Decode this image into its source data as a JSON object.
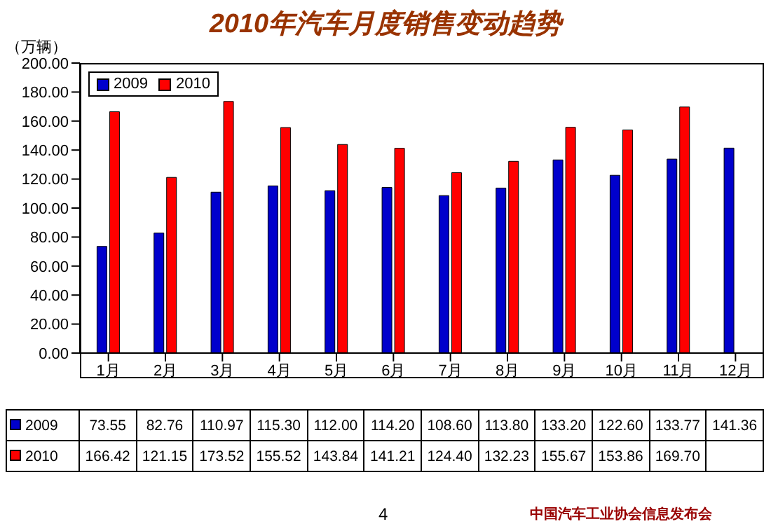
{
  "chart_data": {
    "type": "bar",
    "title": "2010年汽车月度销售变动趋势",
    "ylabel": "（万辆）",
    "categories": [
      "1月",
      "2月",
      "3月",
      "4月",
      "5月",
      "6月",
      "7月",
      "8月",
      "9月",
      "10月",
      "11月",
      "12月"
    ],
    "series": [
      {
        "name": "2009",
        "color": "#0000cc",
        "values": [
          73.55,
          82.76,
          110.97,
          115.3,
          112.0,
          114.2,
          108.6,
          113.8,
          133.2,
          122.6,
          133.77,
          141.36
        ],
        "value_labels": [
          "73.55",
          "82.76",
          "110.97",
          "115.30",
          "112.00",
          "114.20",
          "108.60",
          "113.80",
          "133.20",
          "122.60",
          "133.77",
          "141.36"
        ]
      },
      {
        "name": "2010",
        "color": "#ff0000",
        "values": [
          166.42,
          121.15,
          173.52,
          155.52,
          143.84,
          141.21,
          124.4,
          132.23,
          155.67,
          153.86,
          169.7,
          null
        ],
        "value_labels": [
          "166.42",
          "121.15",
          "173.52",
          "155.52",
          "143.84",
          "141.21",
          "124.40",
          "132.23",
          "155.67",
          "153.86",
          "169.70",
          null
        ]
      }
    ],
    "ylim": [
      0,
      200
    ],
    "yticks": [
      {
        "value": 0,
        "label": "0.00"
      },
      {
        "value": 20,
        "label": "20.00"
      },
      {
        "value": 40,
        "label": "40.00"
      },
      {
        "value": 60,
        "label": "60.00"
      },
      {
        "value": 80,
        "label": "80.00"
      },
      {
        "value": 100,
        "label": "100.00"
      },
      {
        "value": 120,
        "label": "120.00"
      },
      {
        "value": 140,
        "label": "140.00"
      },
      {
        "value": 160,
        "label": "160.00"
      },
      {
        "value": 180,
        "label": "180.00"
      },
      {
        "value": 200,
        "label": "200.00"
      }
    ],
    "grid": false,
    "legend": "top left",
    "annotations": [
      "4",
      "中国汽车工业协会信息发布会"
    ]
  }
}
